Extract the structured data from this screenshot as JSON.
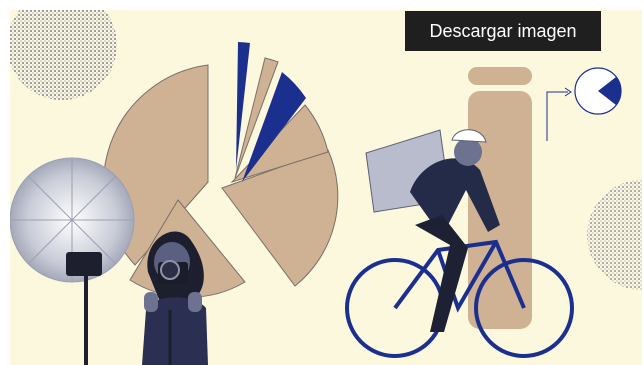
{
  "download_button": {
    "label": "Descargar imagen"
  },
  "colors": {
    "background": "#fcf8dd",
    "tan": "#cfb193",
    "navy": "#1b2f8f",
    "button": "#1f1f1f"
  },
  "illustration": {
    "elements": [
      "grain-circle-top-left",
      "exploded-pie-chart",
      "umbrella-light",
      "photographer-with-camera",
      "exclamation-mark-shape",
      "pie-chart-icon",
      "delivery-cyclist",
      "grain-circle-right"
    ],
    "pie_icon_highlight_fraction": 0.2
  }
}
